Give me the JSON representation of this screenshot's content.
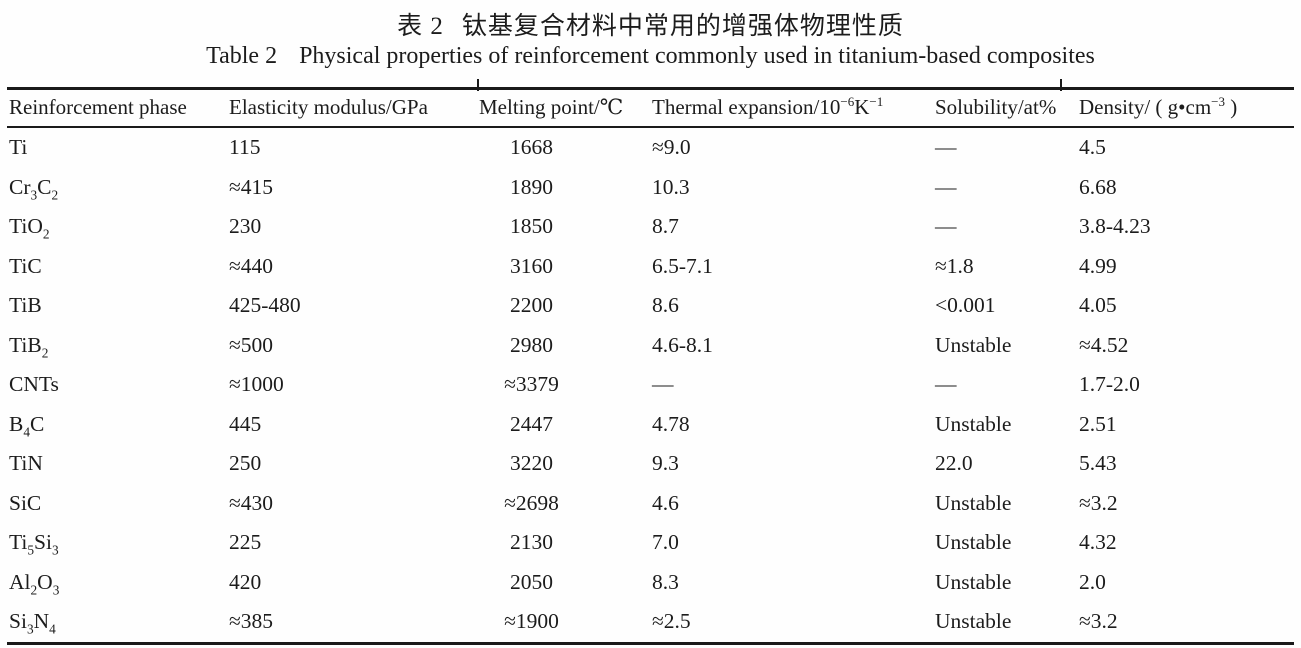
{
  "caption_cn": {
    "label": "表 2",
    "text": "钛基复合材料中常用的增强体物理性质"
  },
  "caption_en": {
    "label": "Table 2",
    "text": "Physical properties of reinforcement commonly used in titanium-based composites"
  },
  "colors": {
    "ink": "#1c1c1c",
    "rule": "#1a1a1a",
    "background": "#fefefe"
  },
  "table": {
    "columns": [
      "Reinforcement phase",
      "Elasticity modulus/GPa",
      "Melting point/℃",
      "Thermal expansion/10^−6^K^−1^",
      "Solubility/at%",
      "Density/ ( g•cm^−3^ )"
    ],
    "rows": [
      [
        "Ti",
        "115",
        "1668",
        "≈9.0",
        "—",
        "4.5"
      ],
      [
        "Cr~3~C~2~",
        "≈415",
        "1890",
        "10.3",
        "—",
        "6.68"
      ],
      [
        "TiO~2~",
        "230",
        "1850",
        "8.7",
        "—",
        "3.8-4.23"
      ],
      [
        "TiC",
        "≈440",
        "3160",
        "6.5-7.1",
        "≈1.8",
        "4.99"
      ],
      [
        "TiB",
        "425-480",
        "2200",
        "8.6",
        "<0.001",
        "4.05"
      ],
      [
        "TiB~2~",
        "≈500",
        "2980",
        "4.6-8.1",
        "Unstable",
        "≈4.52"
      ],
      [
        "CNTs",
        "≈1000",
        "≈3379",
        "—",
        "—",
        "1.7-2.0"
      ],
      [
        "B~4~C",
        "445",
        "2447",
        "4.78",
        "Unstable",
        "2.51"
      ],
      [
        "TiN",
        "250",
        "3220",
        "9.3",
        "22.0",
        "5.43"
      ],
      [
        "SiC",
        "≈430",
        "≈2698",
        "4.6",
        "Unstable",
        "≈3.2"
      ],
      [
        "Ti~5~Si~3~",
        "225",
        "2130",
        "7.0",
        "Unstable",
        "4.32"
      ],
      [
        "Al~2~O~3~",
        "420",
        "2050",
        "8.3",
        "Unstable",
        "2.0"
      ],
      [
        "Si~3~N~4~",
        "≈385",
        "≈1900",
        "≈2.5",
        "Unstable",
        "≈3.2"
      ]
    ]
  }
}
